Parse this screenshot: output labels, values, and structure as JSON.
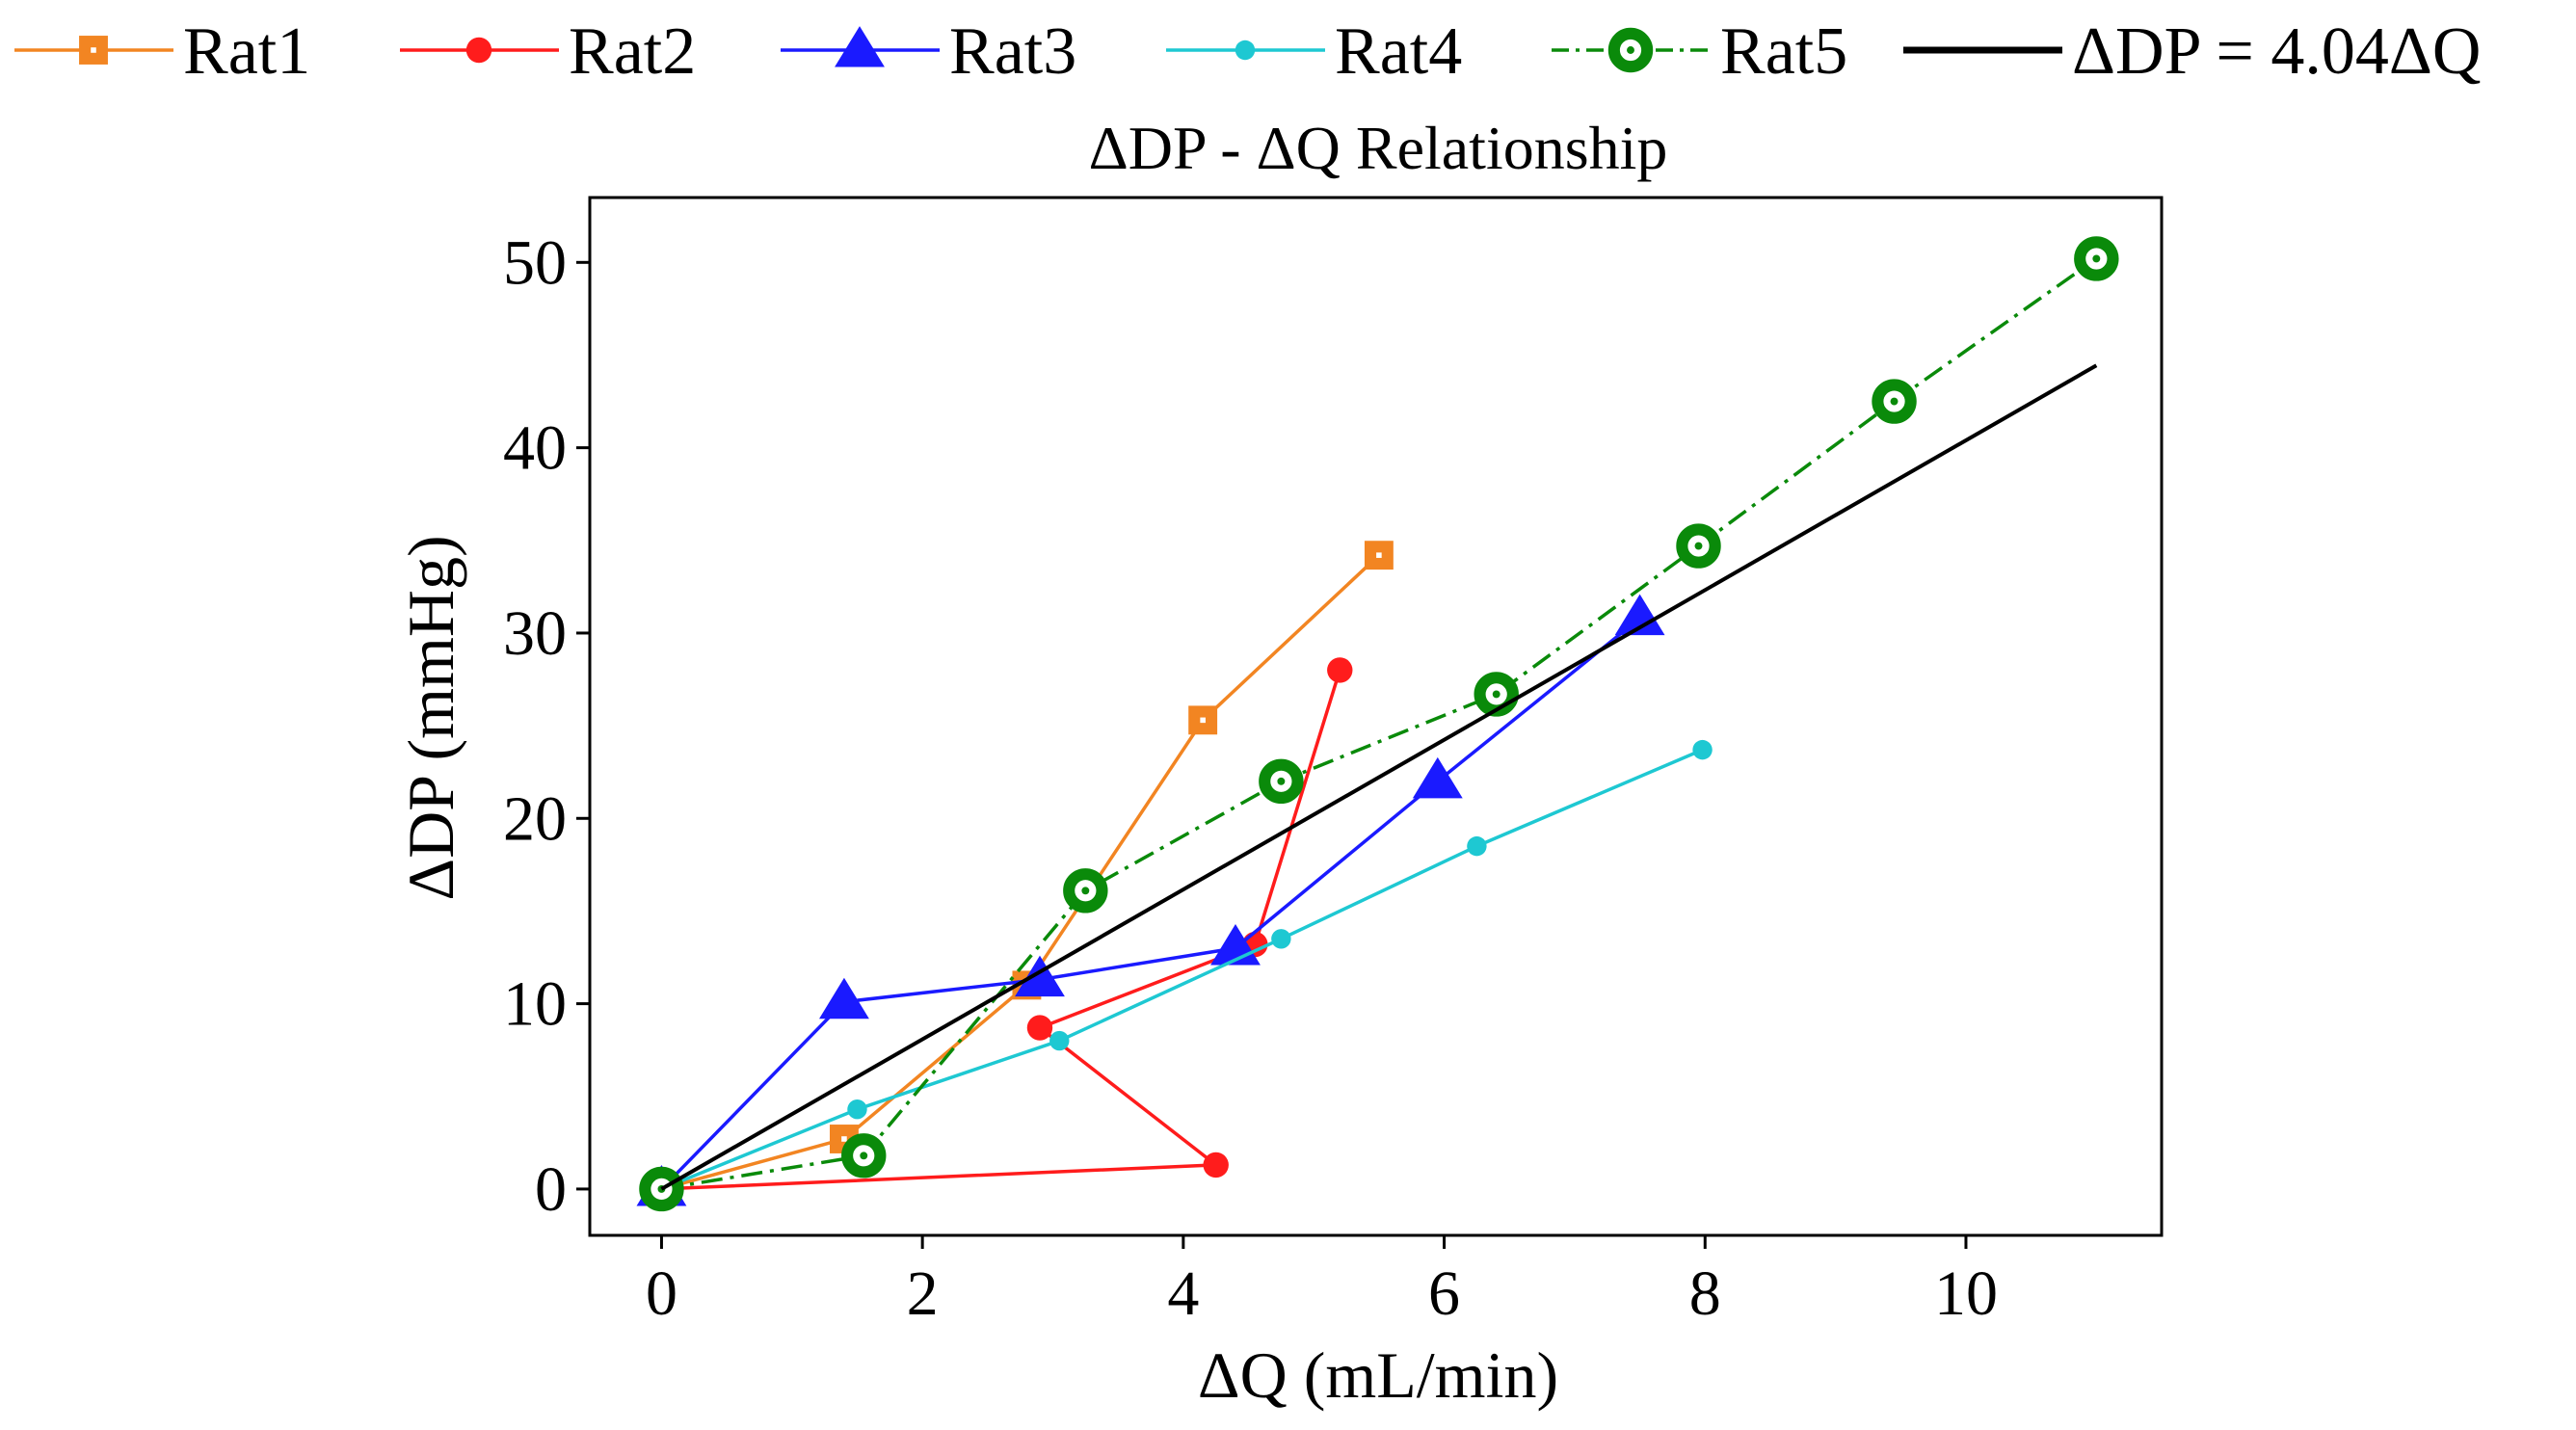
{
  "chart_data": {
    "type": "line",
    "title": "ΔDP - ΔQ Relationship",
    "xlabel": "ΔQ (mL/min)",
    "ylabel": "ΔDP (mmHg)",
    "xlim": [
      -0.55,
      11.5
    ],
    "ylim": [
      -2.5,
      53.5
    ],
    "xticks": [
      0,
      2,
      4,
      6,
      8,
      10
    ],
    "yticks": [
      0,
      10,
      20,
      30,
      40,
      50
    ],
    "grid": false,
    "legend": "top",
    "series": [
      {
        "name": "Rat1",
        "color": "#f28522",
        "marker": "square",
        "linestyle": "solid",
        "x": [
          0,
          1.4,
          2.8,
          4.15,
          5.5
        ],
        "y": [
          0,
          2.7,
          11,
          25.3,
          34.2
        ]
      },
      {
        "name": "Rat2",
        "color": "#ff1c1c",
        "marker": "circle",
        "linestyle": "solid",
        "x": [
          0,
          4.25,
          2.9,
          4.55,
          5.2
        ],
        "y": [
          0,
          1.3,
          8.7,
          13.2,
          28
        ]
      },
      {
        "name": "Rat3",
        "color": "#1a1aff",
        "marker": "triangle",
        "linestyle": "solid",
        "x": [
          0,
          1.4,
          2.9,
          4.4,
          5.95,
          7.5
        ],
        "y": [
          0,
          10.1,
          11.3,
          13,
          22,
          30.8
        ]
      },
      {
        "name": "Rat4",
        "color": "#1ec8d2",
        "marker": "circle",
        "linestyle": "solid",
        "x": [
          0,
          1.5,
          3.05,
          4.75,
          6.25,
          7.98
        ],
        "y": [
          0,
          4.3,
          8,
          13.5,
          18.5,
          23.7
        ]
      },
      {
        "name": "Rat5",
        "color": "#0a8a0a",
        "marker": "ring",
        "linestyle": "dashdot",
        "x": [
          0,
          1.55,
          3.25,
          4.75,
          6.4,
          7.95,
          9.45,
          11
        ],
        "y": [
          0,
          1.8,
          16.1,
          22,
          26.7,
          34.7,
          42.5,
          50.2
        ]
      },
      {
        "name": "ΔDP = 4.04ΔQ",
        "color": "#000000",
        "marker": "none",
        "linestyle": "solid",
        "x": [
          0,
          11
        ],
        "y": [
          0,
          44.44
        ]
      }
    ]
  }
}
